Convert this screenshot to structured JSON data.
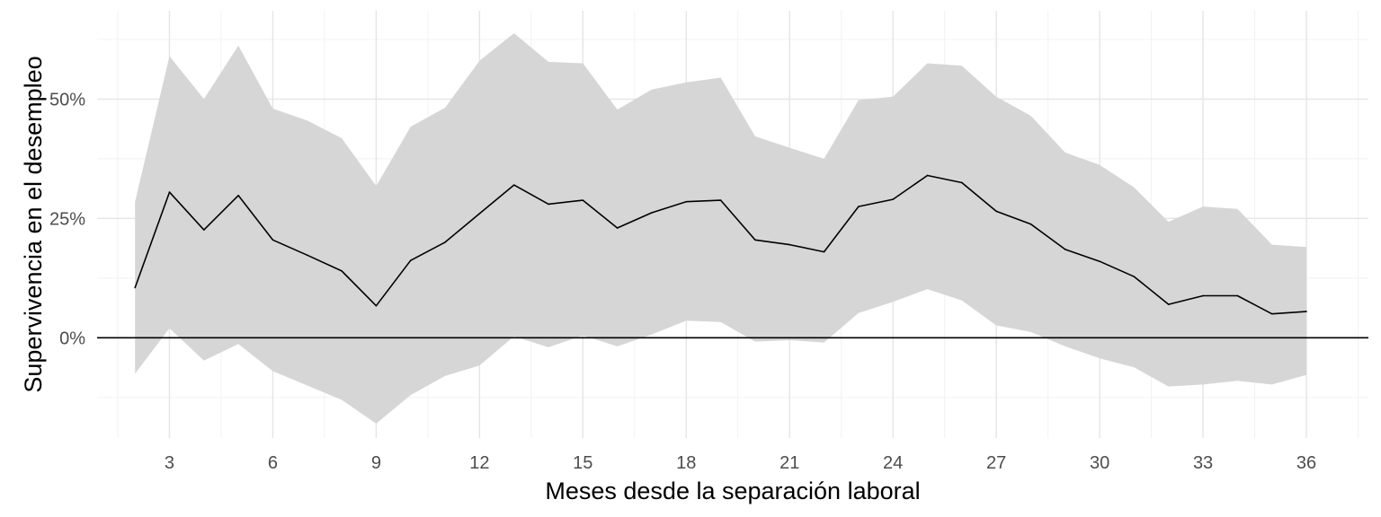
{
  "chart_data": {
    "type": "area",
    "xlabel": "Meses desde la separación laboral",
    "ylabel": "Supervivencia en el desempleo",
    "xlim": [
      0.9,
      37.8
    ],
    "ylim": [
      -0.21,
      0.685
    ],
    "x_ticks": [
      3,
      6,
      9,
      12,
      15,
      18,
      21,
      24,
      27,
      30,
      33,
      36
    ],
    "x_tick_labels": [
      "3",
      "6",
      "9",
      "12",
      "15",
      "18",
      "21",
      "24",
      "27",
      "30",
      "33",
      "36"
    ],
    "y_ticks": [
      0,
      0.25,
      0.5
    ],
    "y_tick_labels": [
      "0%",
      "25%",
      "50%"
    ],
    "grid": true,
    "reference_line_y": 0,
    "colors": {
      "ribbon": "#d6d6d6",
      "line": "#000000",
      "grid_major": "#e5e5e5",
      "grid_minor": "#f2f2f2",
      "reference": "#000000"
    },
    "x": [
      2,
      3,
      4,
      5,
      6,
      7,
      8,
      9,
      10,
      11,
      12,
      13,
      14,
      15,
      16,
      17,
      18,
      19,
      20,
      21,
      22,
      23,
      24,
      25,
      26,
      27,
      28,
      29,
      30,
      31,
      32,
      33,
      34,
      35,
      36
    ],
    "series": [
      {
        "values": [
          0.105,
          0.305,
          0.226,
          0.298,
          0.205,
          0.173,
          0.14,
          0.067,
          0.162,
          0.2,
          0.26,
          0.32,
          0.28,
          0.288,
          0.23,
          0.262,
          0.285,
          0.288,
          0.205,
          0.195,
          0.18,
          0.275,
          0.29,
          0.34,
          0.325,
          0.265,
          0.238,
          0.185,
          0.16,
          0.128,
          0.07,
          0.088,
          0.088,
          0.05,
          0.055
        ],
        "lower": [
          -0.075,
          0.02,
          -0.048,
          -0.013,
          -0.07,
          -0.1,
          -0.13,
          -0.18,
          -0.12,
          -0.08,
          -0.058,
          0.003,
          -0.02,
          0.005,
          -0.018,
          0.007,
          0.036,
          0.033,
          -0.008,
          -0.005,
          -0.01,
          0.052,
          0.075,
          0.102,
          0.078,
          0.026,
          0.012,
          -0.018,
          -0.043,
          -0.062,
          -0.102,
          -0.098,
          -0.09,
          -0.098,
          -0.078
        ],
        "upper": [
          0.285,
          0.59,
          0.5,
          0.612,
          0.48,
          0.455,
          0.418,
          0.318,
          0.442,
          0.482,
          0.58,
          0.638,
          0.578,
          0.575,
          0.478,
          0.52,
          0.535,
          0.545,
          0.422,
          0.398,
          0.375,
          0.498,
          0.505,
          0.575,
          0.57,
          0.505,
          0.465,
          0.388,
          0.362,
          0.315,
          0.243,
          0.275,
          0.27,
          0.195,
          0.19
        ]
      }
    ]
  }
}
